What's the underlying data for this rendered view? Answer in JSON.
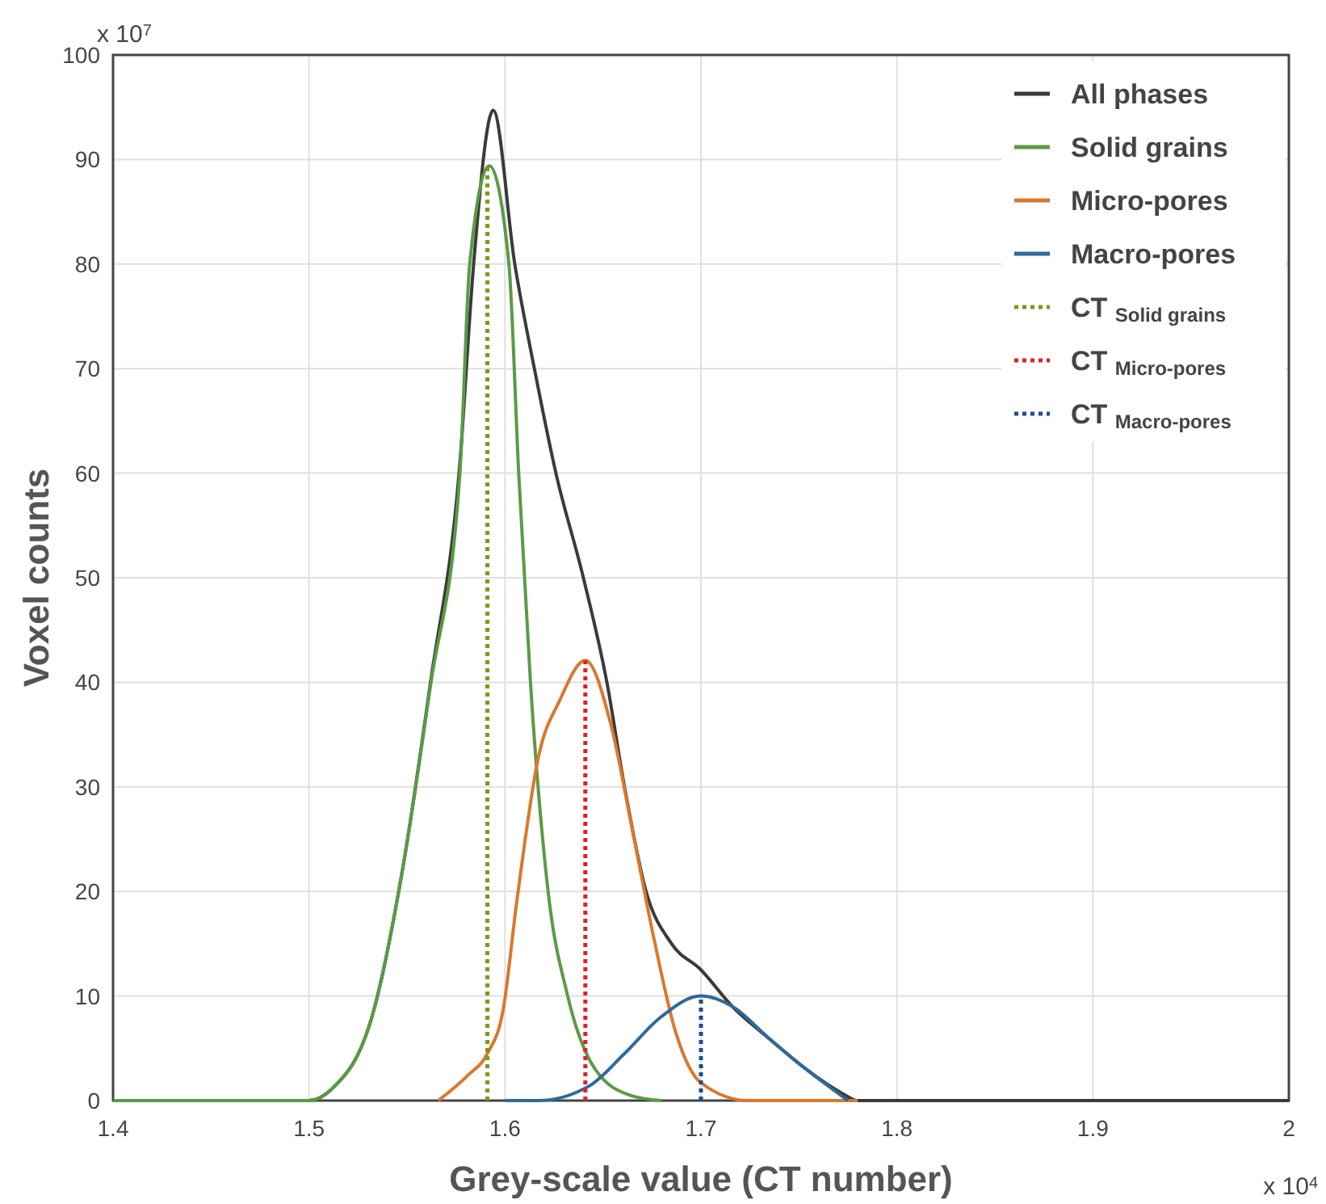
{
  "chart_data": {
    "type": "line",
    "xlabel": "Grey-scale value (CT number)",
    "ylabel": "Voxel counts",
    "annotations": [
      "x 10$^{7}$",
      "x 10$^{4}$"
    ],
    "xlim": [
      1.4,
      2
    ],
    "ylim": [
      0,
      100
    ],
    "xticks": [
      1.4,
      1.5,
      1.6,
      1.7,
      1.8,
      1.9,
      2
    ],
    "yticks": [
      0,
      10,
      20,
      30,
      40,
      50,
      60,
      70,
      80,
      90,
      100
    ],
    "grid": true,
    "legend": "top right",
    "marker": "none",
    "series": [
      {
        "name": "All phases",
        "color": "#3a3a3a",
        "line_style": "solid",
        "x": [
          1.4,
          1.5,
          1.511,
          1.533,
          1.548,
          1.562,
          1.577,
          1.584,
          1.594,
          1.605,
          1.615,
          1.626,
          1.64,
          1.652,
          1.661,
          1.672,
          1.685,
          1.7,
          1.716,
          1.735,
          1.753,
          1.772,
          1.78,
          2
        ],
        "values": [
          0,
          0,
          1,
          8.6,
          22.4,
          40,
          61,
          80,
          94.7,
          80,
          70,
          60,
          50,
          40,
          30,
          20,
          15,
          12.5,
          9,
          5.9,
          3.1,
          0.7,
          0,
          0
        ]
      },
      {
        "name": "Solid grains",
        "color": "#5b9a45",
        "line_style": "solid",
        "x": [
          1.4,
          1.5,
          1.511,
          1.533,
          1.548,
          1.562,
          1.577,
          1.582,
          1.592,
          1.602,
          1.607,
          1.613,
          1.622,
          1.632,
          1.646,
          1.664,
          1.68
        ],
        "values": [
          0,
          0,
          1,
          8.6,
          22.4,
          39.7,
          60,
          80,
          89.4,
          80,
          60,
          40,
          20,
          10,
          3,
          0.5,
          0
        ]
      },
      {
        "name": "Micro-pores",
        "color": "#d9782f",
        "line_style": "solid",
        "x": [
          1.566,
          1.581,
          1.591,
          1.599,
          1.606,
          1.617,
          1.628,
          1.641,
          1.654,
          1.665,
          1.676,
          1.687,
          1.7,
          1.724,
          1.78
        ],
        "values": [
          0,
          2.4,
          4.5,
          8.6,
          19,
          32.8,
          38.3,
          42.1,
          36,
          25.9,
          15.5,
          6.6,
          1.7,
          0,
          0
        ]
      },
      {
        "name": "Macro-pores",
        "color": "#2e6a9a",
        "line_style": "solid",
        "x": [
          1.6,
          1.617,
          1.643,
          1.661,
          1.679,
          1.7,
          1.716,
          1.735,
          1.753,
          1.775
        ],
        "values": [
          0,
          0,
          1.4,
          4.5,
          7.9,
          10,
          9,
          5.9,
          3.1,
          0
        ]
      },
      {
        "name": "CT $_{Solid grains}$",
        "color": "#7a9a1a",
        "line_style": "dotted",
        "x": [
          1.591,
          1.591
        ],
        "values": [
          0,
          89.4
        ]
      },
      {
        "name": "CT $_{Micro-pores}$",
        "color": "#e0202a",
        "line_style": "dotted",
        "x": [
          1.641,
          1.641
        ],
        "values": [
          0,
          42.1
        ]
      },
      {
        "name": "CT $_{Macro-pores}$",
        "color": "#1a4f8a",
        "line_style": "dotted",
        "x": [
          1.7,
          1.7
        ],
        "values": [
          0,
          10
        ]
      }
    ]
  }
}
